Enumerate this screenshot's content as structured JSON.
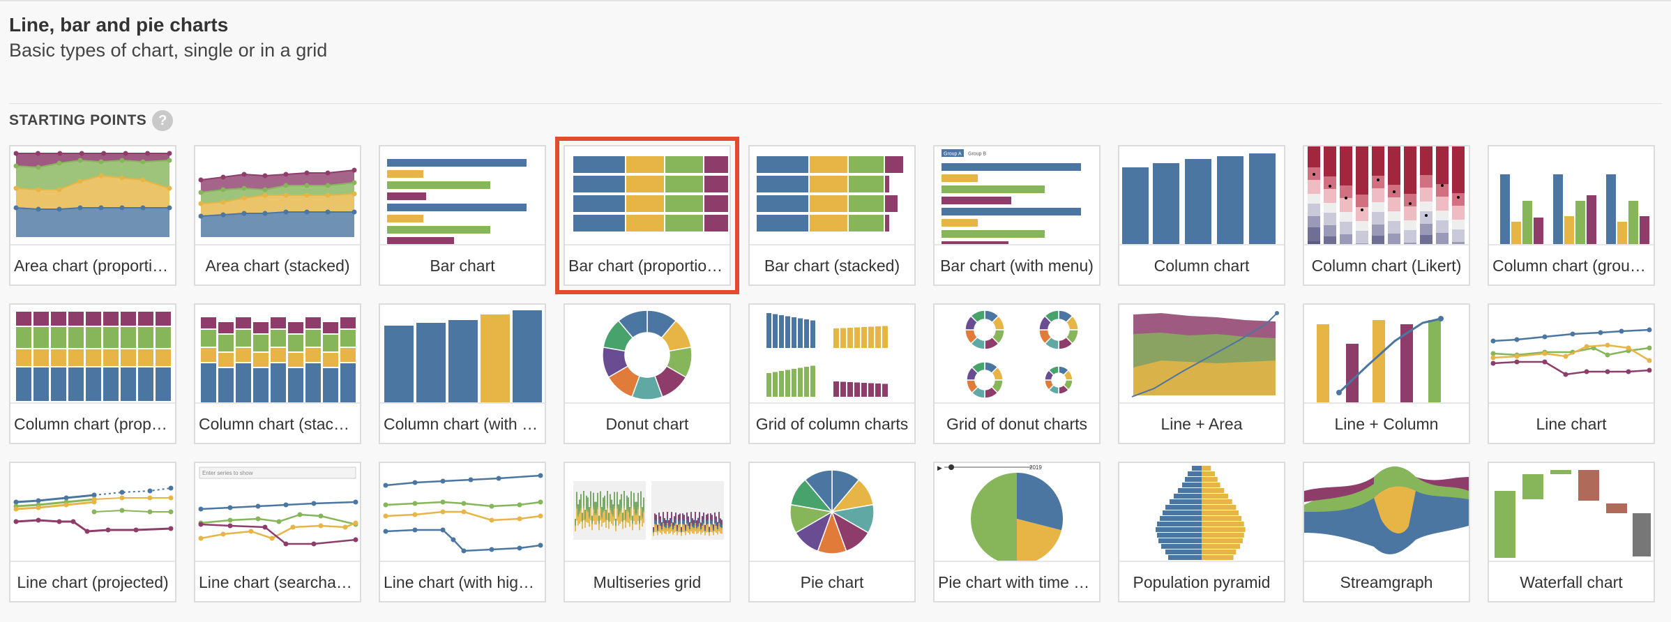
{
  "header": {
    "title": "Line, bar and pie charts",
    "subtitle": "Basic types of chart, single or in a grid"
  },
  "section": {
    "label": "STARTING POINTS",
    "help": "?"
  },
  "colors": {
    "blue": "#4b76a1",
    "yellow": "#e6b545",
    "green": "#86b55a",
    "purple": "#8e3d6b",
    "accent": "#e34a2f"
  },
  "thumb_text": {
    "group_a": "Group A",
    "group_b": "Group B",
    "search_placeholder": "Enter series to show",
    "year": "2019"
  },
  "cards": [
    {
      "label": "Area chart (proportional)",
      "icon": "area-proportional-thumb"
    },
    {
      "label": "Area chart (stacked)",
      "icon": "area-stacked-thumb"
    },
    {
      "label": "Bar chart",
      "icon": "bar-thumb"
    },
    {
      "label": "Bar chart (proportional)",
      "icon": "bar-proportional-thumb",
      "selected": true
    },
    {
      "label": "Bar chart (stacked)",
      "icon": "bar-stacked-thumb"
    },
    {
      "label": "Bar chart (with menu)",
      "icon": "bar-menu-thumb"
    },
    {
      "label": "Column chart",
      "icon": "column-thumb"
    },
    {
      "label": "Column chart (Likert)",
      "icon": "column-likert-thumb"
    },
    {
      "label": "Column chart (grouped)",
      "icon": "column-grouped-thumb"
    },
    {
      "label": "Column chart (proportional)",
      "icon": "column-proportional-thumb"
    },
    {
      "label": "Column chart (stacked)",
      "icon": "column-stacked-thumb"
    },
    {
      "label": "Column chart (with highlight)",
      "icon": "column-highlight-thumb"
    },
    {
      "label": "Donut chart",
      "icon": "donut-thumb"
    },
    {
      "label": "Grid of column charts",
      "icon": "grid-columns-thumb"
    },
    {
      "label": "Grid of donut charts",
      "icon": "grid-donuts-thumb"
    },
    {
      "label": "Line + Area",
      "icon": "line-area-thumb"
    },
    {
      "label": "Line + Column",
      "icon": "line-column-thumb"
    },
    {
      "label": "Line chart",
      "icon": "line-thumb"
    },
    {
      "label": "Line chart (projected)",
      "icon": "line-projected-thumb"
    },
    {
      "label": "Line chart (searchable)",
      "icon": "line-searchable-thumb"
    },
    {
      "label": "Line chart (with highlight)",
      "icon": "line-highlight-thumb"
    },
    {
      "label": "Multiseries grid",
      "icon": "multiseries-grid-thumb"
    },
    {
      "label": "Pie chart",
      "icon": "pie-thumb"
    },
    {
      "label": "Pie chart with time slider",
      "icon": "pie-slider-thumb"
    },
    {
      "label": "Population pyramid",
      "icon": "population-pyramid-thumb"
    },
    {
      "label": "Streamgraph",
      "icon": "streamgraph-thumb"
    },
    {
      "label": "Waterfall chart",
      "icon": "waterfall-thumb"
    }
  ]
}
